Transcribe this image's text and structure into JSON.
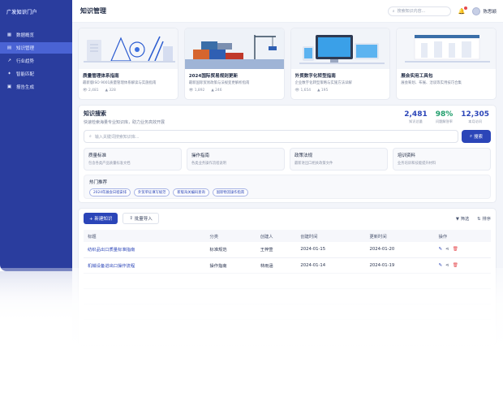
{
  "brand": "广发知识门户",
  "sidebar": {
    "items": [
      {
        "icon": "dashboard-icon",
        "glyph": "▦",
        "label": "数据概览"
      },
      {
        "icon": "book-icon",
        "glyph": "▤",
        "label": "知识管理"
      },
      {
        "icon": "trend-icon",
        "glyph": "↗",
        "label": "行业趋势"
      },
      {
        "icon": "match-icon",
        "glyph": "✦",
        "label": "智能匹配"
      },
      {
        "icon": "report-icon",
        "glyph": "▣",
        "label": "报告生成"
      }
    ]
  },
  "header": {
    "title": "知识管理",
    "search_placeholder": "搜索知识内容...",
    "user_name": "陈思颖"
  },
  "cards": [
    {
      "title": "质量管理体系指南",
      "desc": "最新版ISO 9001质量管理体系解读与实施指南",
      "views": "2,481",
      "likes": "328"
    },
    {
      "title": "2024国际贸易规则更新",
      "desc": "最新国际贸易政策与法规变更解析指南",
      "views": "1,892",
      "likes": "246"
    },
    {
      "title": "外贸数字化转型指南",
      "desc": "企业数字化转型策略与实施方法详解",
      "views": "1,654",
      "likes": "195"
    },
    {
      "title": "展会实用工具包",
      "desc": "展会筹划、布展、洽谈等实用技巧合集",
      "views": "",
      "likes": ""
    }
  ],
  "knowledge_search": {
    "title": "知识搜索",
    "subtitle": "快速检索海量专业知识库，助力业务高效开展",
    "placeholder": "输入关键词搜索知识库...",
    "button": "搜索",
    "stats": [
      {
        "value": "2,481",
        "label": "知识总量",
        "color": "#2b45b8"
      },
      {
        "value": "98%",
        "label": "问题解答率",
        "color": "#1f9d6b"
      },
      {
        "value": "12,305",
        "label": "本月访问",
        "color": "#2b45b8"
      }
    ],
    "categories": [
      {
        "name": "质量标准",
        "desc": "包含各类产品质量标准文档"
      },
      {
        "name": "操作指南",
        "desc": "各类业务操作流程说明"
      },
      {
        "name": "政策法规",
        "desc": "最新进出口相关政策文件"
      },
      {
        "name": "培训资料",
        "desc": "业务培训和技能提升材料"
      }
    ],
    "hot_title": "热门推荐",
    "hot_tags": [
      "2024年展会日程安排",
      "外贸单证填写规范",
      "新版海关编码查询",
      "国际物流操作指南"
    ]
  },
  "table": {
    "new_button": "+ 新建知识",
    "import_button": "批量导入",
    "filter_label": "筛选",
    "sort_label": "排序",
    "columns": [
      "标题",
      "分类",
      "创建人",
      "创建时间",
      "更新时间",
      "操作"
    ],
    "rows": [
      {
        "title": "纺织品出口质量标准指南",
        "category": "标准规范",
        "creator": "王梓萱",
        "created": "2024-01-15",
        "updated": "2024-01-20"
      },
      {
        "title": "机械设备进出口操作流程",
        "category": "操作指南",
        "creator": "林雨涵",
        "created": "2024-01-14",
        "updated": "2024-01-19"
      }
    ]
  }
}
